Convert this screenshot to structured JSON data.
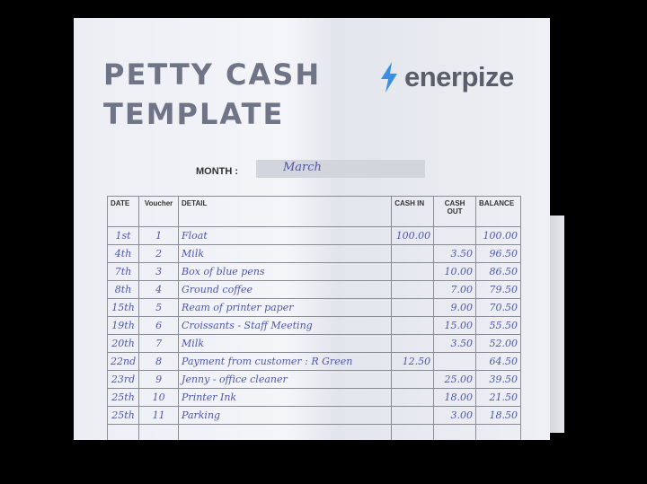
{
  "title_line1": "PETTY CASH",
  "title_line2": "TEMPLATE",
  "logo": {
    "text": "enerpize",
    "icon": "lightning-bolt-icon",
    "color": "#3a8fe0"
  },
  "month": {
    "label": "MONTH :",
    "value": "March"
  },
  "table": {
    "headers": [
      "DATE",
      "Voucher",
      "DETAIL",
      "CASH IN",
      "CASH OUT",
      "BALANCE"
    ],
    "rows": [
      [
        "1st",
        "1",
        "Float",
        "100.00",
        "",
        "100.00"
      ],
      [
        "4th",
        "2",
        "Milk",
        "",
        "3.50",
        "96.50"
      ],
      [
        "7th",
        "3",
        "Box of blue pens",
        "",
        "10.00",
        "86.50"
      ],
      [
        "8th",
        "4",
        "Ground coffee",
        "",
        "7.00",
        "79.50"
      ],
      [
        "15th",
        "5",
        "Ream of printer paper",
        "",
        "9.00",
        "70.50"
      ],
      [
        "19th",
        "6",
        "Croissants - Staff Meeting",
        "",
        "15.00",
        "55.50"
      ],
      [
        "20th",
        "7",
        "Milk",
        "",
        "3.50",
        "52.00"
      ],
      [
        "22nd",
        "8",
        "Payment from customer : R Green",
        "12.50",
        "",
        "64.50"
      ],
      [
        "23rd",
        "9",
        "Jenny - office cleaner",
        "",
        "25.00",
        "39.50"
      ],
      [
        "25th",
        "10",
        "Printer Ink",
        "",
        "18.00",
        "21.50"
      ],
      [
        "25th",
        "11",
        "Parking",
        "",
        "3.00",
        "18.50"
      ],
      [
        "",
        "",
        "",
        "",
        "",
        ""
      ]
    ]
  }
}
